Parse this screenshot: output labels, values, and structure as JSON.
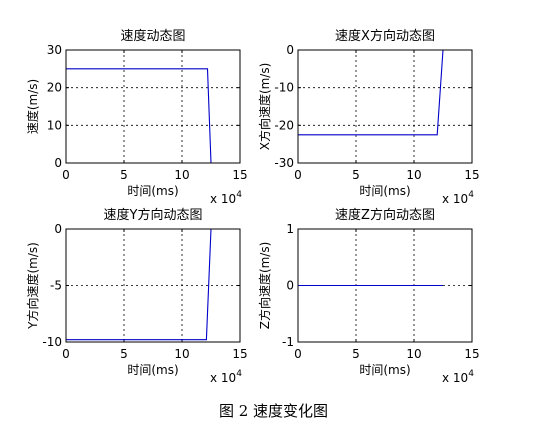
{
  "caption": "图 2 速度变化图",
  "line_color": "#0000c8",
  "chart_data": [
    {
      "type": "line",
      "title": "速度动态图",
      "xlabel": "时间(ms)",
      "ylabel": "速度(m/s)",
      "x_exponent_label": "x 10",
      "x_exponent_power": "4",
      "xlim": [
        0,
        15
      ],
      "ylim": [
        0,
        30
      ],
      "xticks": [
        0,
        5,
        10,
        15
      ],
      "yticks": [
        0,
        10,
        20,
        30
      ],
      "grid": true,
      "series": [
        {
          "x": [
            0,
            12.2,
            12.5
          ],
          "y": [
            25,
            25,
            0
          ]
        }
      ]
    },
    {
      "type": "line",
      "title": "速度X方向动态图",
      "xlabel": "时间(ms)",
      "ylabel": "X方向速度(m/s)",
      "x_exponent_label": "x 10",
      "x_exponent_power": "4",
      "xlim": [
        0,
        15
      ],
      "ylim": [
        -30,
        0
      ],
      "xticks": [
        0,
        5,
        10,
        15
      ],
      "yticks": [
        -30,
        -20,
        -10,
        0
      ],
      "grid": true,
      "series": [
        {
          "x": [
            0,
            12.0,
            12.5
          ],
          "y": [
            -22.5,
            -22.5,
            0
          ]
        }
      ]
    },
    {
      "type": "line",
      "title": "速度Y方向动态图",
      "xlabel": "时间(ms)",
      "ylabel": "Y方向速度(m/s)",
      "x_exponent_label": "x 10",
      "x_exponent_power": "4",
      "xlim": [
        0,
        15
      ],
      "ylim": [
        -10,
        0
      ],
      "xticks": [
        0,
        5,
        10,
        15
      ],
      "yticks": [
        -10,
        -5,
        0
      ],
      "grid": true,
      "series": [
        {
          "x": [
            0,
            12.1,
            12.5
          ],
          "y": [
            -9.8,
            -9.8,
            0
          ]
        }
      ]
    },
    {
      "type": "line",
      "title": "速度Z方向动态图",
      "xlabel": "时间(ms)",
      "ylabel": "Z方向速度(m/s)",
      "x_exponent_label": "x 10",
      "x_exponent_power": "4",
      "xlim": [
        0,
        15
      ],
      "ylim": [
        -1,
        1
      ],
      "xticks": [
        0,
        5,
        10,
        15
      ],
      "yticks": [
        -1,
        0,
        1
      ],
      "grid": true,
      "series": [
        {
          "x": [
            0,
            12.5
          ],
          "y": [
            0,
            0
          ]
        }
      ]
    }
  ]
}
